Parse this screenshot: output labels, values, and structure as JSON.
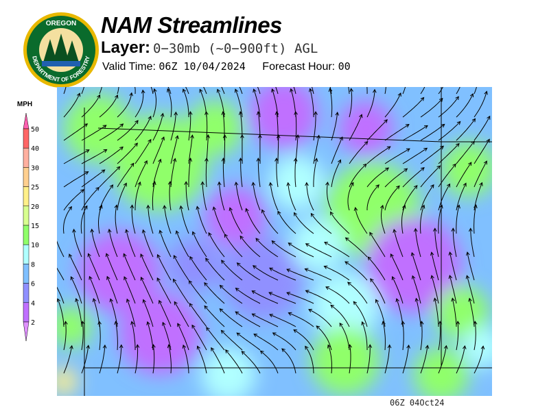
{
  "logo": {
    "text_top": "OREGON",
    "text_bottom": "DEPARTMENT OF FORESTRY"
  },
  "header": {
    "title": "NAM Streamlines",
    "layer_label": "Layer:",
    "layer_value": "0−30mb (~0−900ft) AGL",
    "valid_label": "Valid Time:",
    "valid_value": "06Z 10/04/2024",
    "forecast_label": "Forecast Hour:",
    "forecast_value": "00"
  },
  "legend": {
    "unit": "MPH",
    "ticks": [
      "50",
      "40",
      "30",
      "25",
      "20",
      "15",
      "10",
      "8",
      "6",
      "4",
      "2"
    ],
    "colors": [
      "#ff6666",
      "#ffb0a0",
      "#ffd090",
      "#fff08a",
      "#d8ff90",
      "#90ff6a",
      "#b0ffff",
      "#80c0ff",
      "#9090ff",
      "#c070ff"
    ],
    "over_color": "#ff60b0",
    "under_color": "#e090ff"
  },
  "footer": {
    "stamp": "06Z 04Oct24"
  }
}
